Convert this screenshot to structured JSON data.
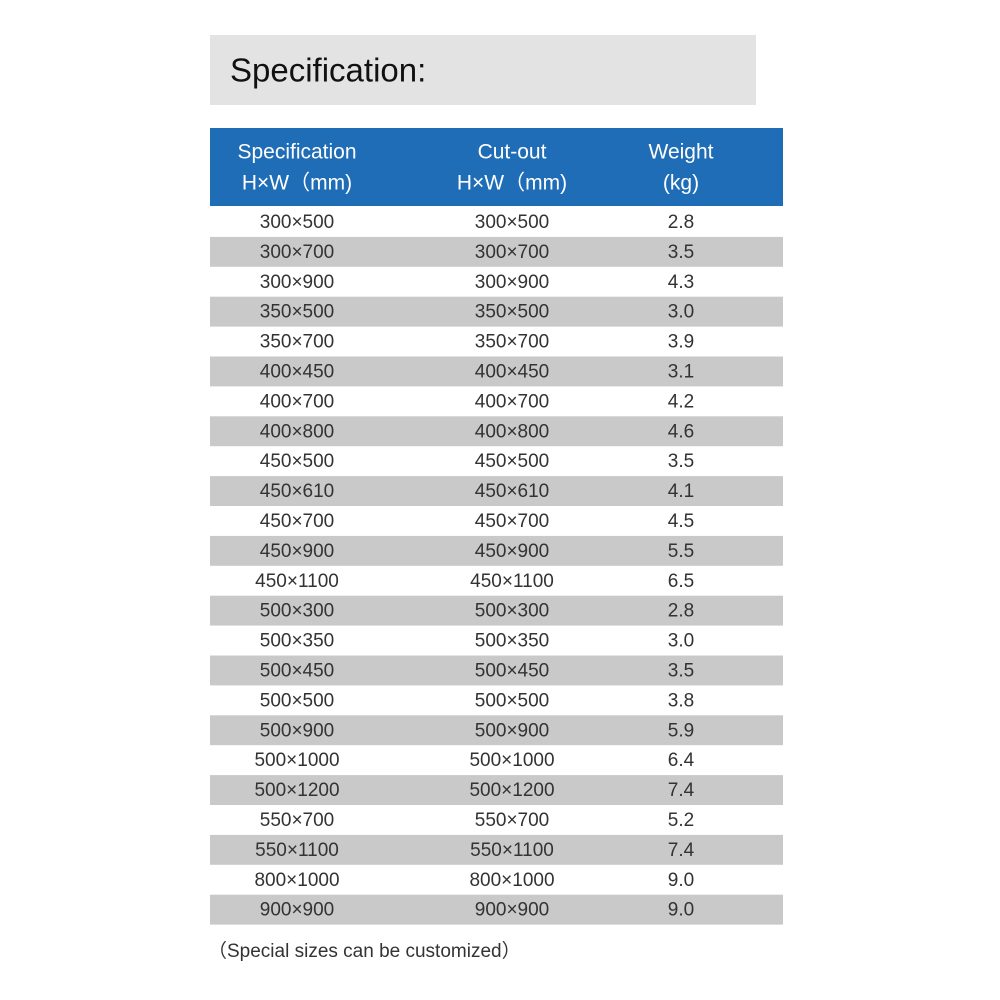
{
  "title": "Specification:",
  "table": {
    "header": [
      [
        "Specification",
        "H×W（mm)"
      ],
      [
        "Cut-out",
        "H×W（mm)"
      ],
      [
        "Weight",
        "(kg)"
      ]
    ],
    "rows": [
      [
        "300×500",
        "300×500",
        "2.8"
      ],
      [
        "300×700",
        "300×700",
        "3.5"
      ],
      [
        "300×900",
        "300×900",
        "4.3"
      ],
      [
        "350×500",
        "350×500",
        "3.0"
      ],
      [
        "350×700",
        "350×700",
        "3.9"
      ],
      [
        "400×450",
        "400×450",
        "3.1"
      ],
      [
        "400×700",
        "400×700",
        "4.2"
      ],
      [
        "400×800",
        "400×800",
        "4.6"
      ],
      [
        "450×500",
        "450×500",
        "3.5"
      ],
      [
        "450×610",
        "450×610",
        "4.1"
      ],
      [
        "450×700",
        "450×700",
        "4.5"
      ],
      [
        "450×900",
        "450×900",
        "5.5"
      ],
      [
        "450×1100",
        "450×1100",
        "6.5"
      ],
      [
        "500×300",
        "500×300",
        "2.8"
      ],
      [
        "500×350",
        "500×350",
        "3.0"
      ],
      [
        "500×450",
        "500×450",
        "3.5"
      ],
      [
        "500×500",
        "500×500",
        "3.8"
      ],
      [
        "500×900",
        "500×900",
        "5.9"
      ],
      [
        "500×1000",
        "500×1000",
        "6.4"
      ],
      [
        "500×1200",
        "500×1200",
        "7.4"
      ],
      [
        "550×700",
        "550×700",
        "5.2"
      ],
      [
        "550×1100",
        "550×1100",
        "7.4"
      ],
      [
        "800×1000",
        "800×1000",
        "9.0"
      ],
      [
        "900×900",
        "900×900",
        "9.0"
      ]
    ]
  },
  "note": "（Special sizes can be customized）"
}
